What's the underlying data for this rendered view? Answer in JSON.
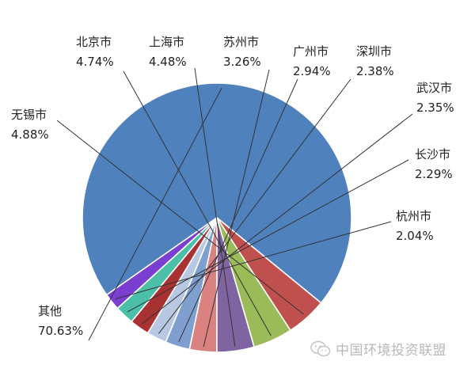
{
  "chart_data": {
    "type": "pie",
    "title": "",
    "slices": [
      {
        "label": "其他",
        "value": 70.63,
        "display": "70.63%",
        "color": "#4f81bd"
      },
      {
        "label": "无锡市",
        "value": 4.88,
        "display": "4.88%",
        "color": "#c0504d"
      },
      {
        "label": "北京市",
        "value": 4.74,
        "display": "4.74%",
        "color": "#9bbb59"
      },
      {
        "label": "上海市",
        "value": 4.48,
        "display": "4.48%",
        "color": "#8064a2"
      },
      {
        "label": "苏州市",
        "value": 3.26,
        "display": "3.26%",
        "color": "#d9827f"
      },
      {
        "label": "广州市",
        "value": 2.94,
        "display": "2.94%",
        "color": "#7f9fcf"
      },
      {
        "label": "深圳市",
        "value": 2.38,
        "display": "2.38%",
        "color": "#b9c8e2"
      },
      {
        "label": "武汉市",
        "value": 2.35,
        "display": "2.35%",
        "color": "#a83232"
      },
      {
        "label": "长沙市",
        "value": 2.29,
        "display": "2.29%",
        "color": "#4bbfa8"
      },
      {
        "label": "杭州市",
        "value": 2.04,
        "display": "2.04%",
        "color": "#7a3fd0"
      }
    ],
    "legend": "none",
    "data_labels": "outside-with-leader-lines"
  },
  "watermark": {
    "text": "中国环境投资联盟",
    "icon": "wechat-icon"
  }
}
